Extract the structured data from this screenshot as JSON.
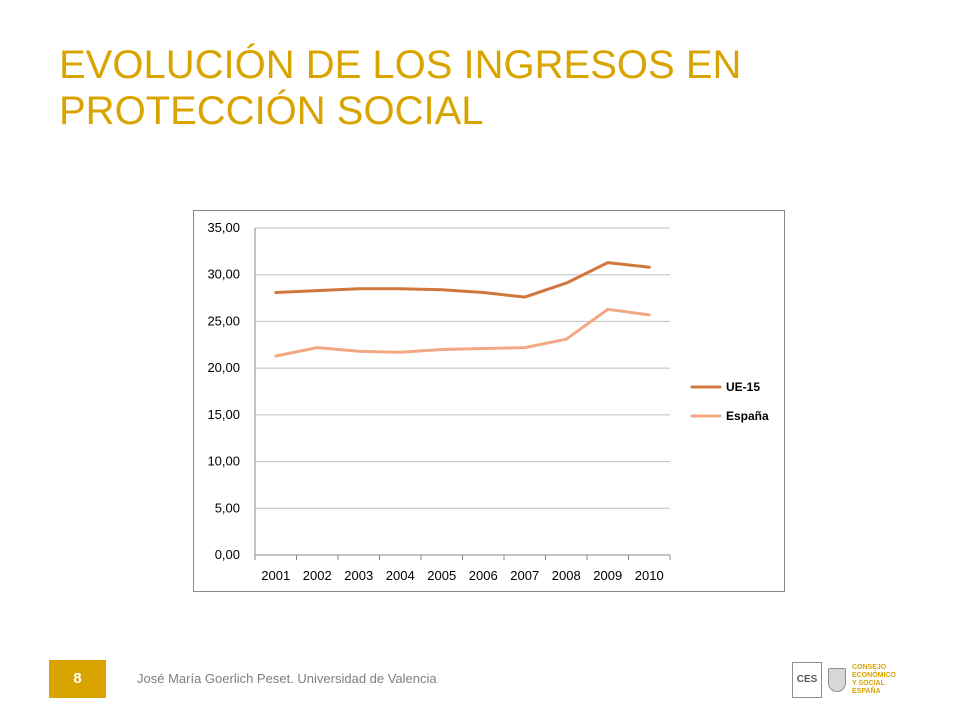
{
  "slide": {
    "title_line_1": "EVOLUCIÓN DE LOS INGRESOS EN",
    "title_line_2": "PROTECCIÓN SOCIAL",
    "accent_color": "#D9A400",
    "page_number": "8",
    "footer_text": "José María Goerlich Peset. Universidad de Valencia",
    "logo": {
      "acronym": "CES",
      "name_lines": [
        "CONSEJO",
        "ECONÓMICO",
        "Y SOCIAL",
        "ESPAÑA"
      ]
    }
  },
  "chart_data": {
    "type": "line",
    "title": "",
    "xlabel": "",
    "ylabel": "",
    "categories": [
      "2001",
      "2002",
      "2003",
      "2004",
      "2005",
      "2006",
      "2007",
      "2008",
      "2009",
      "2010"
    ],
    "series": [
      {
        "name": "UE-15",
        "color": "#D0783C",
        "values": [
          28.1,
          28.3,
          28.5,
          28.5,
          28.4,
          28.1,
          27.6,
          29.1,
          31.3,
          30.8
        ]
      },
      {
        "name": "España",
        "color": "#F2A983",
        "values": [
          21.3,
          22.2,
          21.8,
          21.7,
          22.0,
          22.1,
          22.2,
          23.1,
          26.3,
          25.7
        ]
      }
    ],
    "ylim": [
      0,
      35
    ],
    "yticks": [
      "0,00",
      "5,00",
      "10,00",
      "15,00",
      "20,00",
      "25,00",
      "30,00",
      "35,00"
    ],
    "grid": true,
    "legend_position": "right"
  }
}
